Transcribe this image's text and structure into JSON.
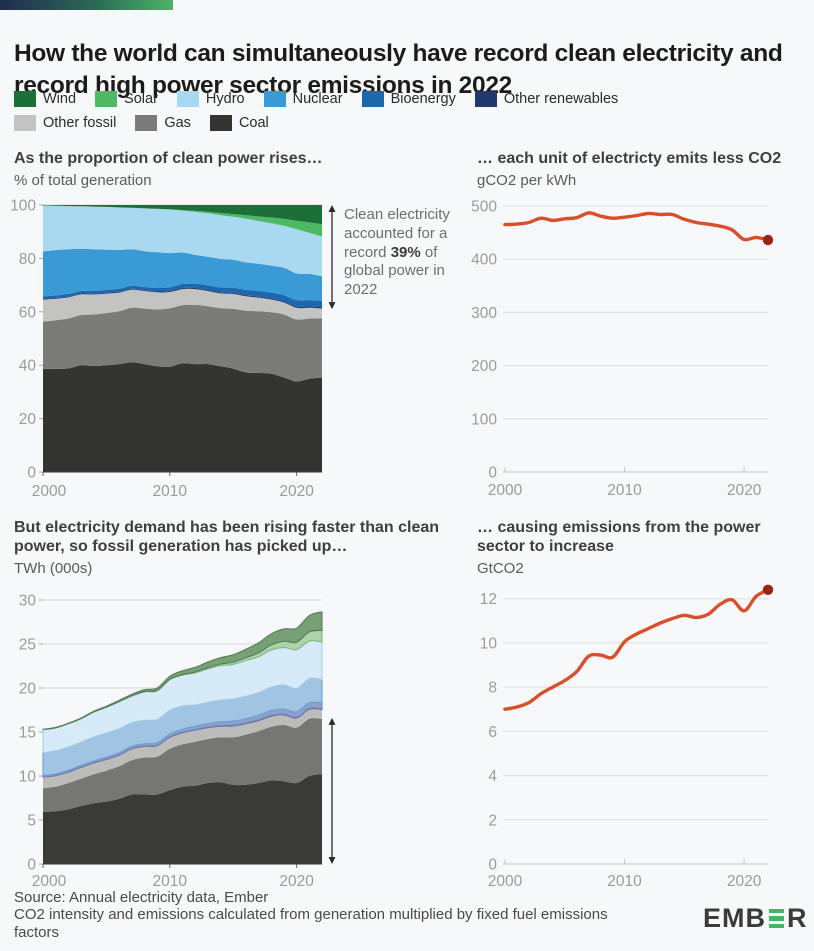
{
  "header": {
    "title": "How the world can simultaneously have record clean electricity and record high power sector emissions in 2022"
  },
  "legend": {
    "split": 6,
    "items": [
      {
        "label": "Wind",
        "color": "#1d6f39"
      },
      {
        "label": "Solar",
        "color": "#4db964"
      },
      {
        "label": "Hydro",
        "color": "#a9d8f1"
      },
      {
        "label": "Nuclear",
        "color": "#3a9ad6"
      },
      {
        "label": "Bioenergy",
        "color": "#1d68ac"
      },
      {
        "label": "Other renewables",
        "color": "#20386b"
      },
      {
        "label": "Other fossil",
        "color": "#c3c3c1"
      },
      {
        "label": "Gas",
        "color": "#7b7b79"
      },
      {
        "label": "Coal",
        "color": "#343432"
      }
    ]
  },
  "chart_data": [
    {
      "id": "clean-share",
      "type": "area",
      "title": "As the proportion of clean power rises…",
      "subtitle": "% of total generation",
      "x": [
        2000,
        2001,
        2002,
        2003,
        2004,
        2005,
        2006,
        2007,
        2008,
        2009,
        2010,
        2011,
        2012,
        2013,
        2014,
        2015,
        2016,
        2017,
        2018,
        2019,
        2020,
        2021,
        2022
      ],
      "xticks": [
        2000,
        2010,
        2020
      ],
      "ylim": [
        0,
        100
      ],
      "yticks": [
        0,
        20,
        40,
        60,
        80,
        100
      ],
      "series": [
        {
          "name": "Coal",
          "color": "#343432",
          "values": [
            38.7,
            38.6,
            38.8,
            40.0,
            39.7,
            40.0,
            40.4,
            41.1,
            40.4,
            39.6,
            39.4,
            40.7,
            40.4,
            40.4,
            39.6,
            38.7,
            37.3,
            37.1,
            36.8,
            35.4,
            33.9,
            34.9,
            35.4
          ]
        },
        {
          "name": "Gas",
          "color": "#7b7b79",
          "values": [
            17.6,
            18.2,
            18.7,
            18.8,
            19.3,
            19.5,
            19.8,
            20.4,
            20.8,
            21.3,
            21.9,
            21.8,
            22.2,
            21.7,
            21.8,
            22.4,
            23.1,
            23.1,
            23.0,
            23.6,
            23.2,
            22.6,
            22.1
          ]
        },
        {
          "name": "Other fossil",
          "color": "#c3c3c1",
          "values": [
            8.3,
            8.1,
            7.9,
            7.7,
            7.5,
            7.3,
            7.0,
            6.8,
            6.6,
            6.4,
            6.1,
            6.0,
            5.9,
            5.7,
            5.5,
            5.6,
            5.4,
            5.1,
            4.8,
            4.5,
            4.4,
            4.0,
            3.7
          ]
        },
        {
          "name": "Other renewables",
          "color": "#20386b",
          "values": [
            0.3,
            0.3,
            0.3,
            0.3,
            0.3,
            0.3,
            0.3,
            0.3,
            0.3,
            0.3,
            0.4,
            0.4,
            0.4,
            0.4,
            0.4,
            0.4,
            0.4,
            0.4,
            0.4,
            0.4,
            0.5,
            0.5,
            0.5
          ]
        },
        {
          "name": "Bioenergy",
          "color": "#1d68ac",
          "values": [
            0.9,
            0.9,
            1.0,
            1.0,
            1.0,
            1.1,
            1.1,
            1.1,
            1.2,
            1.3,
            1.4,
            1.5,
            1.6,
            1.7,
            1.8,
            1.9,
            2.0,
            2.1,
            2.2,
            2.3,
            2.4,
            2.4,
            2.4
          ]
        },
        {
          "name": "Nuclear",
          "color": "#3a9ad6",
          "values": [
            16.8,
            17.0,
            16.7,
            15.8,
            15.6,
            15.1,
            14.6,
            13.7,
            13.4,
            13.4,
            12.8,
            11.8,
            10.8,
            10.7,
            10.7,
            10.5,
            10.3,
            10.2,
            10.1,
            10.3,
            10.0,
            9.8,
            9.2
          ]
        },
        {
          "name": "Hydro",
          "color": "#a9d8f1",
          "values": [
            17.2,
            16.6,
            16.2,
            15.9,
            16.0,
            16.0,
            15.9,
            15.5,
            16.0,
            16.2,
            16.3,
            15.7,
            16.1,
            16.3,
            16.4,
            16.1,
            16.4,
            16.0,
            15.9,
            15.7,
            16.5,
            15.4,
            14.9
          ]
        },
        {
          "name": "Solar",
          "color": "#4db964",
          "values": [
            0,
            0,
            0,
            0,
            0,
            0,
            0,
            0.1,
            0.1,
            0.1,
            0.1,
            0.2,
            0.4,
            0.6,
            0.8,
            1.0,
            1.3,
            1.7,
            2.1,
            2.6,
            3.2,
            3.9,
            4.6
          ]
        },
        {
          "name": "Wind",
          "color": "#1d6f39",
          "values": [
            0.2,
            0.3,
            0.4,
            0.5,
            0.6,
            0.7,
            0.9,
            1.0,
            1.2,
            1.4,
            1.6,
            1.9,
            2.2,
            2.5,
            3.0,
            3.4,
            3.8,
            4.3,
            4.7,
            5.2,
            5.9,
            6.5,
            7.2
          ]
        }
      ],
      "annotation": {
        "text_pre": "Clean electricity accounted for a record ",
        "text_bold": "39%",
        "text_post": " of global power in 2022",
        "arrow_span": [
          61,
          100
        ]
      }
    },
    {
      "id": "carbon-intensity",
      "type": "line",
      "title": "… each unit of electricty emits less CO2",
      "subtitle": "gCO2 per kWh",
      "color": "#d94e2b",
      "end_dot_color": "#9b2217",
      "x": [
        2000,
        2001,
        2002,
        2003,
        2004,
        2005,
        2006,
        2007,
        2008,
        2009,
        2010,
        2011,
        2012,
        2013,
        2014,
        2015,
        2016,
        2017,
        2018,
        2019,
        2020,
        2021,
        2022
      ],
      "xticks": [
        2000,
        2010,
        2020
      ],
      "ylim": [
        0,
        500
      ],
      "yticks": [
        0,
        100,
        200,
        300,
        400,
        500
      ],
      "values": [
        465,
        466,
        469,
        477,
        473,
        476,
        478,
        487,
        481,
        477,
        479,
        482,
        486,
        484,
        484,
        475,
        469,
        466,
        462,
        455,
        437,
        441,
        436
      ]
    },
    {
      "id": "generation",
      "type": "area",
      "title": "But electricity demand has been rising faster than clean power, so fossil generation has picked up…",
      "subtitle": "TWh (000s)",
      "x": [
        2000,
        2001,
        2002,
        2003,
        2004,
        2005,
        2006,
        2007,
        2008,
        2009,
        2010,
        2011,
        2012,
        2013,
        2014,
        2015,
        2016,
        2017,
        2018,
        2019,
        2020,
        2021,
        2022
      ],
      "xticks": [
        2000,
        2010,
        2020
      ],
      "ylim": [
        0,
        30
      ],
      "yticks": [
        0,
        5,
        10,
        15,
        20,
        25,
        30
      ],
      "series": [
        {
          "name": "Coal",
          "color": "#3a3a38",
          "values": [
            5.9,
            6.0,
            6.2,
            6.6,
            6.9,
            7.1,
            7.4,
            7.9,
            7.9,
            7.9,
            8.4,
            8.8,
            8.9,
            9.2,
            9.3,
            9.0,
            9.0,
            9.2,
            9.5,
            9.4,
            9.2,
            10.0,
            10.2
          ]
        },
        {
          "name": "Gas",
          "color": "#767674",
          "values": [
            2.7,
            2.8,
            3.0,
            3.1,
            3.3,
            3.5,
            3.7,
            3.9,
            4.2,
            4.3,
            4.7,
            4.8,
            5.0,
            5.0,
            5.1,
            5.4,
            5.7,
            5.9,
            6.1,
            6.4,
            6.3,
            6.5,
            6.3
          ]
        },
        {
          "name": "Other fossil",
          "color": "#bcbcba",
          "values": [
            1.27,
            1.25,
            1.24,
            1.28,
            1.28,
            1.3,
            1.28,
            1.3,
            1.27,
            1.25,
            1.3,
            1.32,
            1.33,
            1.3,
            1.26,
            1.3,
            1.25,
            1.2,
            1.2,
            1.15,
            1.1,
            1.1,
            1.07
          ]
        },
        {
          "name": "Other renewables",
          "color": "#6b7aa6",
          "stroke": "#5a699b",
          "values": [
            0.05,
            0.05,
            0.06,
            0.06,
            0.06,
            0.06,
            0.06,
            0.06,
            0.06,
            0.07,
            0.07,
            0.07,
            0.08,
            0.08,
            0.09,
            0.09,
            0.09,
            0.1,
            0.1,
            0.1,
            0.1,
            0.1,
            0.1
          ]
        },
        {
          "name": "Bioenergy",
          "color": "#8fa0cc",
          "stroke": "#7b8cbf",
          "values": [
            0.14,
            0.14,
            0.15,
            0.16,
            0.17,
            0.19,
            0.2,
            0.21,
            0.23,
            0.25,
            0.29,
            0.31,
            0.35,
            0.38,
            0.41,
            0.45,
            0.47,
            0.49,
            0.52,
            0.55,
            0.6,
            0.62,
            0.67
          ]
        },
        {
          "name": "Nuclear",
          "color": "#98bfe0",
          "stroke": "#6aa3d6",
          "opacity": 0.92,
          "values": [
            2.58,
            2.64,
            2.66,
            2.64,
            2.72,
            2.71,
            2.74,
            2.68,
            2.68,
            2.62,
            2.72,
            2.64,
            2.42,
            2.42,
            2.48,
            2.52,
            2.56,
            2.58,
            2.68,
            2.75,
            2.64,
            2.76,
            2.63
          ]
        },
        {
          "name": "Hydro",
          "color": "#d3e7f6",
          "stroke": "#a7cfe9",
          "opacity": 0.88,
          "values": [
            2.64,
            2.6,
            2.64,
            2.68,
            2.84,
            2.97,
            3.08,
            3.04,
            3.24,
            3.3,
            3.48,
            3.52,
            3.64,
            3.8,
            3.9,
            3.93,
            4.05,
            4.09,
            4.23,
            4.26,
            4.42,
            4.26,
            4.28
          ]
        },
        {
          "name": "Solar",
          "color": "#a5cfa3",
          "stroke": "#7cb97f",
          "opacity": 0.92,
          "values": [
            0,
            0,
            0,
            0,
            0,
            0,
            0,
            0.01,
            0.01,
            0.02,
            0.03,
            0.06,
            0.1,
            0.14,
            0.19,
            0.25,
            0.33,
            0.44,
            0.57,
            0.7,
            0.84,
            1.04,
            1.3
          ]
        },
        {
          "name": "Wind",
          "color": "#719b70",
          "stroke": "#557f58",
          "opacity": 0.95,
          "values": [
            0.03,
            0.04,
            0.05,
            0.06,
            0.09,
            0.1,
            0.13,
            0.17,
            0.22,
            0.28,
            0.34,
            0.44,
            0.53,
            0.64,
            0.71,
            0.83,
            0.96,
            1.13,
            1.26,
            1.41,
            1.59,
            1.85,
            2.1
          ]
        }
      ],
      "annotation": {
        "arrow_span": [
          0,
          16.6
        ]
      }
    },
    {
      "id": "emissions",
      "type": "line",
      "title": "… causing emissions from the power sector to increase",
      "subtitle": "GtCO2",
      "color": "#d94e2b",
      "end_dot_color": "#9b2217",
      "x": [
        2000,
        2001,
        2002,
        2003,
        2004,
        2005,
        2006,
        2007,
        2008,
        2009,
        2010,
        2011,
        2012,
        2013,
        2014,
        2015,
        2016,
        2017,
        2018,
        2019,
        2020,
        2021,
        2022
      ],
      "xticks": [
        2000,
        2010,
        2020
      ],
      "ylim": [
        0,
        12.8
      ],
      "yticks": [
        0,
        2,
        4,
        6,
        8,
        10,
        12
      ],
      "values": [
        7.0,
        7.1,
        7.3,
        7.7,
        8.0,
        8.3,
        8.7,
        9.4,
        9.45,
        9.35,
        10.05,
        10.4,
        10.65,
        10.9,
        11.1,
        11.25,
        11.15,
        11.3,
        11.75,
        11.95,
        11.45,
        12.1,
        12.4
      ]
    }
  ],
  "footer": {
    "line1": "Source: Annual electricity data, Ember",
    "line2": "CO2 intensity and emissions calculated from generation multiplied by fixed fuel emissions factors",
    "logo_pre": "EMB",
    "logo_post": "R"
  }
}
